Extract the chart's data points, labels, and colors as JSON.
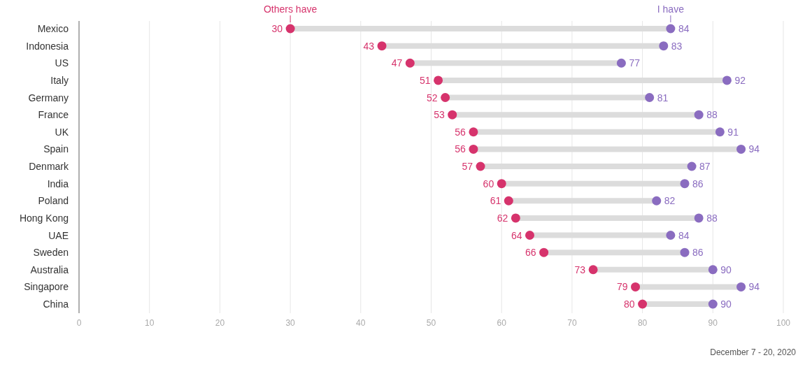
{
  "chart_data": {
    "type": "scatter",
    "orientation": "horizontal",
    "categories": [
      "Mexico",
      "Indonesia",
      "US",
      "Italy",
      "Germany",
      "France",
      "UK",
      "Spain",
      "Denmark",
      "India",
      "Poland",
      "Hong Kong",
      "UAE",
      "Sweden",
      "Australia",
      "Singapore",
      "China"
    ],
    "series": [
      {
        "name": "Others have",
        "color": "#d6336c",
        "values": [
          30,
          43,
          47,
          51,
          52,
          53,
          56,
          56,
          57,
          60,
          61,
          62,
          64,
          66,
          73,
          79,
          80
        ]
      },
      {
        "name": "I have",
        "color": "#8a6cc0",
        "values": [
          84,
          83,
          77,
          92,
          81,
          88,
          91,
          94,
          87,
          86,
          82,
          88,
          84,
          86,
          90,
          94,
          90
        ]
      }
    ],
    "xlim": [
      0,
      100
    ],
    "xticks": [
      0,
      10,
      20,
      30,
      40,
      50,
      60,
      70,
      80,
      90,
      100
    ],
    "grid": "x",
    "marker": "circle",
    "data_labels": true,
    "annotations": [
      "December 7 - 20, 2020"
    ]
  }
}
